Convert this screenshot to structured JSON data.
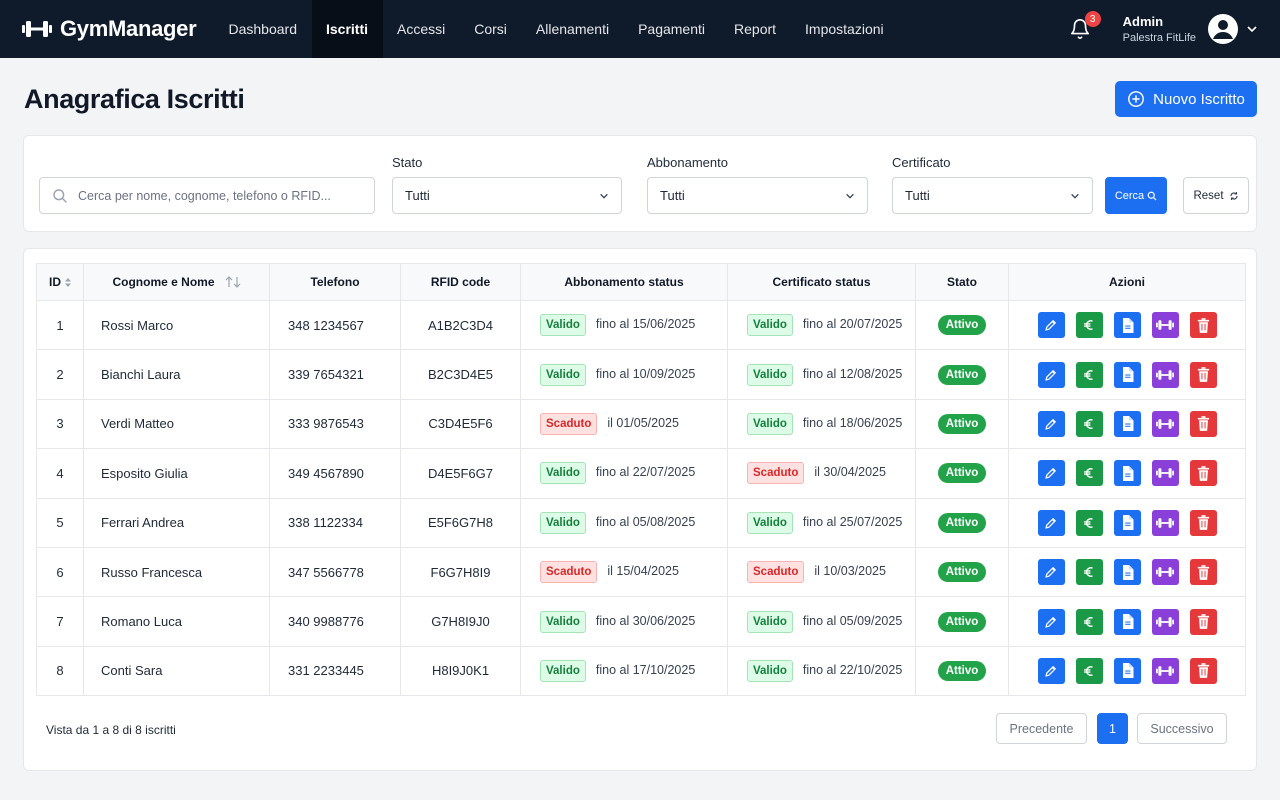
{
  "app": {
    "name": "GymManager"
  },
  "nav": {
    "items": [
      "Dashboard",
      "Iscritti",
      "Accessi",
      "Corsi",
      "Allenamenti",
      "Pagamenti",
      "Report",
      "Impostazioni"
    ],
    "active": "Iscritti"
  },
  "notifications": {
    "count": "3",
    "icon": "bell-icon"
  },
  "user": {
    "name": "Admin",
    "org": "Palestra FitLife",
    "avatar_icon": "user-avatar-icon"
  },
  "page": {
    "title": "Anagrafica Iscritti",
    "new_button": "Nuovo Iscritto"
  },
  "filters": {
    "search_placeholder": "Cerca per nome, cognome, telefono o RFID...",
    "search_value": "",
    "stato": {
      "label": "Stato",
      "value": "Tutti"
    },
    "abbonamento": {
      "label": "Abbonamento",
      "value": "Tutti"
    },
    "certificato": {
      "label": "Certificato",
      "value": "Tutti"
    },
    "search_button": "Cerca",
    "reset_button": "Reset"
  },
  "table": {
    "columns": [
      "ID",
      "Cognome e Nome",
      "Telefono",
      "RFID code",
      "Abbonamento status",
      "Certificato status",
      "Stato",
      "Azioni"
    ],
    "rows": [
      {
        "id": "1",
        "name": "Rossi Marco",
        "phone": "348 1234567",
        "rfid": "A1B2C3D4",
        "abb_status": "Valido",
        "abb_date": "fino al 15/06/2025",
        "cert_status": "Valido",
        "cert_date": "fino al 20/07/2025",
        "state": "Attivo"
      },
      {
        "id": "2",
        "name": "Bianchi Laura",
        "phone": "339 7654321",
        "rfid": "B2C3D4E5",
        "abb_status": "Valido",
        "abb_date": "fino al 10/09/2025",
        "cert_status": "Valido",
        "cert_date": "fino al 12/08/2025",
        "state": "Attivo"
      },
      {
        "id": "3",
        "name": "Verdi Matteo",
        "phone": "333 9876543",
        "rfid": "C3D4E5F6",
        "abb_status": "Scaduto",
        "abb_date": "il 01/05/2025",
        "cert_status": "Valido",
        "cert_date": "fino al 18/06/2025",
        "state": "Attivo"
      },
      {
        "id": "4",
        "name": "Esposito Giulia",
        "phone": "349 4567890",
        "rfid": "D4E5F6G7",
        "abb_status": "Valido",
        "abb_date": "fino al 22/07/2025",
        "cert_status": "Scaduto",
        "cert_date": "il 30/04/2025",
        "state": "Attivo"
      },
      {
        "id": "5",
        "name": "Ferrari Andrea",
        "phone": "338 1122334",
        "rfid": "E5F6G7H8",
        "abb_status": "Valido",
        "abb_date": "fino al 05/08/2025",
        "cert_status": "Valido",
        "cert_date": "fino al 25/07/2025",
        "state": "Attivo"
      },
      {
        "id": "6",
        "name": "Russo Francesca",
        "phone": "347 5566778",
        "rfid": "F6G7H8I9",
        "abb_status": "Scaduto",
        "abb_date": "il 15/04/2025",
        "cert_status": "Scaduto",
        "cert_date": "il 10/03/2025",
        "state": "Attivo"
      },
      {
        "id": "7",
        "name": "Romano Luca",
        "phone": "340 9988776",
        "rfid": "G7H8I9J0",
        "abb_status": "Valido",
        "abb_date": "fino al 30/06/2025",
        "cert_status": "Valido",
        "cert_date": "fino al 05/09/2025",
        "state": "Attivo"
      },
      {
        "id": "8",
        "name": "Conti Sara",
        "phone": "331 2233445",
        "rfid": "H8I9J0K1",
        "abb_status": "Valido",
        "abb_date": "fino al 17/10/2025",
        "cert_status": "Valido",
        "cert_date": "fino al 22/10/2025",
        "state": "Attivo"
      }
    ],
    "row_actions": [
      "edit-icon",
      "euro-icon",
      "document-icon",
      "dumbbell-icon",
      "trash-icon"
    ]
  },
  "pagination": {
    "info": "Vista da 1 a 8 di 8 iscritti",
    "prev": "Precedente",
    "current": "1",
    "next": "Successivo"
  },
  "colors": {
    "topbar": "#0f1a2a",
    "primary": "#1d6ff2",
    "success": "#22a34a",
    "danger": "#e5383b",
    "purple": "#8b3fd9"
  }
}
